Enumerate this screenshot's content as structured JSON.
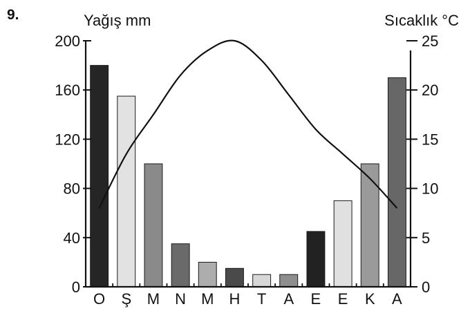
{
  "question_number": "9.",
  "chart_data": {
    "type": "bar",
    "categories": [
      "O",
      "Ş",
      "M",
      "N",
      "M",
      "H",
      "T",
      "A",
      "E",
      "E",
      "K",
      "A"
    ],
    "series": [
      {
        "type": "bar",
        "axis": "left",
        "values": [
          180,
          155,
          100,
          35,
          20,
          15,
          10,
          10,
          45,
          70,
          100,
          170
        ],
        "colors": [
          "#252525",
          "#e2e2e2",
          "#8a8a8a",
          "#6a6a6a",
          "#adadad",
          "#4a4a4a",
          "#d7d7d7",
          "#8e8e8e",
          "#222222",
          "#e0e0e0",
          "#9a9a9a",
          "#676767"
        ]
      },
      {
        "type": "line",
        "axis": "right",
        "values": [
          8,
          13.5,
          17.5,
          21.5,
          24,
          25,
          23,
          19.5,
          16,
          13.5,
          11,
          8
        ]
      }
    ],
    "left_axis": {
      "label": "Yağış mm",
      "ylim": [
        0,
        200
      ],
      "ticks": [
        0,
        40,
        80,
        120,
        160,
        200
      ]
    },
    "right_axis": {
      "label": "Sıcaklık °C",
      "ylim": [
        0,
        25
      ],
      "ticks": [
        0,
        5,
        10,
        15,
        20,
        25
      ]
    },
    "grid": false
  }
}
